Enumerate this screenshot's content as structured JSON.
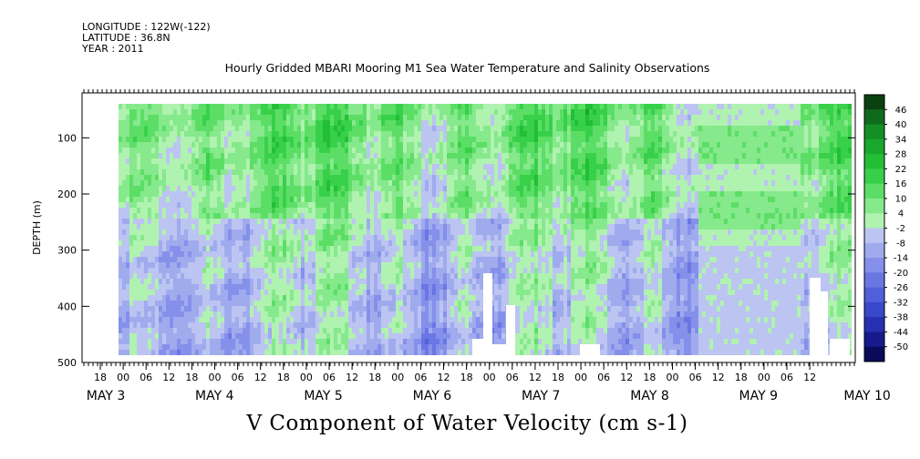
{
  "header": {
    "longitude": "LONGITUDE : 122W(-122)",
    "latitude": "LATITUDE : 36.8N",
    "year": "YEAR : 2011"
  },
  "chart_data": {
    "type": "heatmap",
    "title": "Hourly Gridded MBARI Mooring M1 Sea Water Temperature and Salinity Observations",
    "xlabel": "V Component of Water Velocity (cm s-1)",
    "ylabel": "DEPTH (m)",
    "ylim": [
      500,
      20
    ],
    "y_ticks": [
      "100",
      "200",
      "300",
      "400",
      "500"
    ],
    "x_hour_ticks": [
      "18",
      "00",
      "06",
      "12",
      "18",
      "00",
      "06",
      "12",
      "18",
      "00",
      "06",
      "12",
      "18",
      "00",
      "06",
      "12",
      "18",
      "00",
      "06",
      "12",
      "18",
      "00",
      "06",
      "12",
      "18",
      "00",
      "06",
      "12",
      "18",
      "00",
      "06",
      "12"
    ],
    "x_day_labels": [
      "MAY 3",
      "MAY 4",
      "MAY 5",
      "MAY 6",
      "MAY 7",
      "MAY 8",
      "MAY 9",
      "MAY 10"
    ],
    "colorbar": {
      "labels": [
        "46",
        "40",
        "34",
        "28",
        "22",
        "16",
        "10",
        "4",
        "-2",
        "-8",
        "-14",
        "-20",
        "-26",
        "-32",
        "-38",
        "-44",
        "-50"
      ],
      "colors": [
        "#0a3f10",
        "#106a1c",
        "#138f24",
        "#18a82c",
        "#22bf36",
        "#38d04a",
        "#5cde66",
        "#86e98c",
        "#b0f2b0",
        "#bcc4f2",
        "#a0abee",
        "#8490ea",
        "#6a76e2",
        "#5160da",
        "#3a48cc",
        "#2730b0",
        "#161a8c",
        "#0a0a5a"
      ]
    },
    "approx_fields": "Mixed positive (green) and negative (blue) V velocities; green mostly in upper 0-250 m, blue below ~250 m; data gaps (white) near bottom around May 7 and May 10"
  }
}
